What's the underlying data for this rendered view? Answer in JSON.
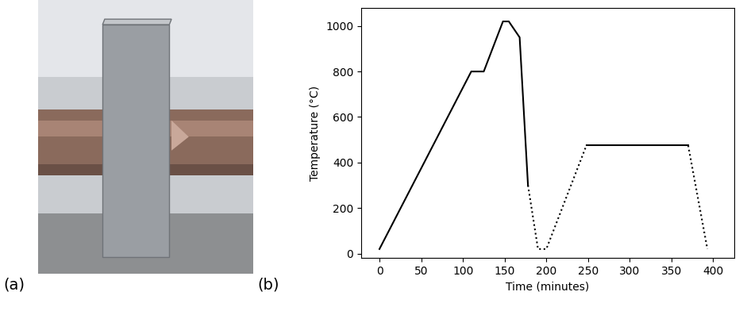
{
  "panel_labels": [
    "(a)",
    "(b)"
  ],
  "chart_data": {
    "type": "line",
    "x_label": "Time (minutes)",
    "y_label": "Temperature (°C)",
    "color": "#000000",
    "series": [
      {
        "line_style": "solid",
        "x": [
          0,
          110,
          125,
          148,
          155,
          168,
          178
        ],
        "values": [
          20,
          800,
          800,
          1020,
          1020,
          950,
          300
        ]
      },
      {
        "line_style": "dotted",
        "x": [
          178,
          190,
          200,
          248
        ],
        "values": [
          300,
          20,
          20,
          475
        ]
      },
      {
        "line_style": "solid",
        "x": [
          248,
          370
        ],
        "values": [
          475,
          475
        ]
      },
      {
        "line_style": "dotted",
        "x": [
          370,
          393
        ],
        "values": [
          475,
          20
        ]
      }
    ],
    "xlim": [
      -22,
      425
    ],
    "xticks": [
      0,
      50,
      100,
      150,
      200,
      250,
      300,
      350,
      400
    ],
    "ylim": [
      -20,
      1080
    ],
    "yticks": [
      0,
      200,
      400,
      600,
      800,
      1000
    ],
    "grid": false
  }
}
